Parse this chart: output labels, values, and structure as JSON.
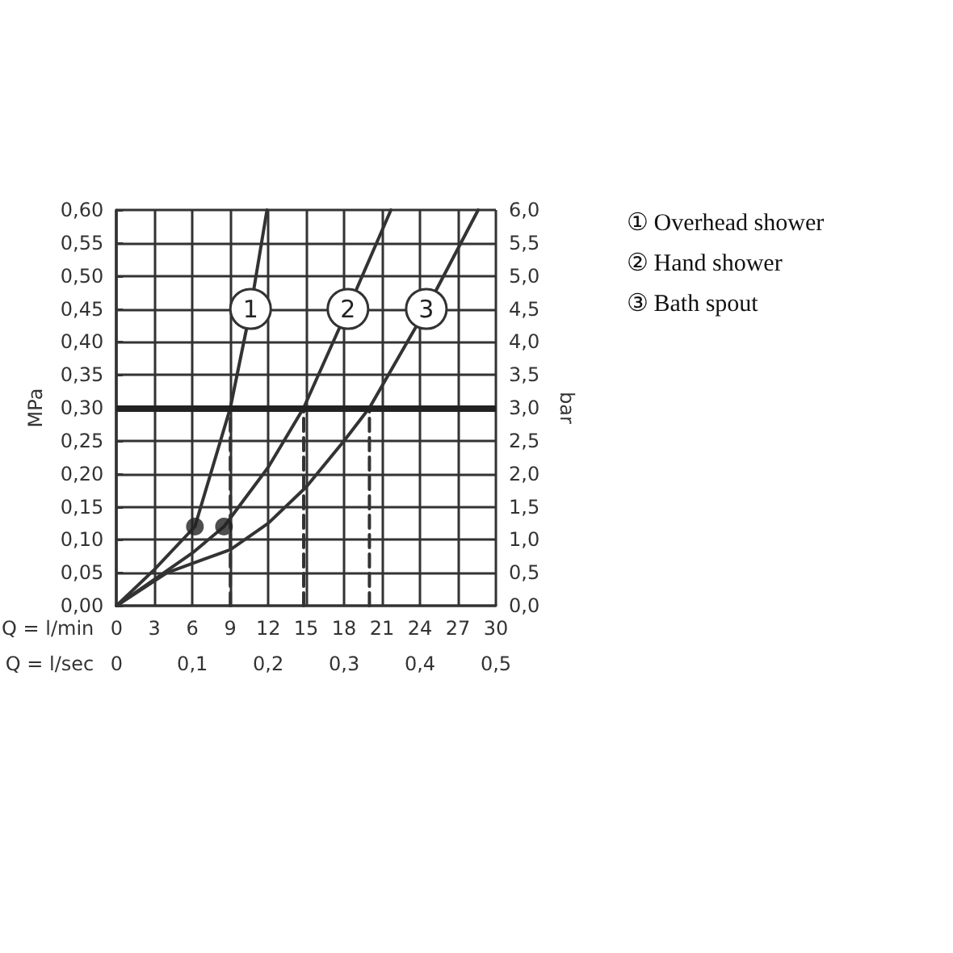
{
  "chart_data": {
    "type": "line",
    "xlabel": "Q = l/min",
    "x2label": "Q = l/sec",
    "ylabel": "MPa",
    "y2label": "bar",
    "xlim": [
      0,
      30
    ],
    "xticks": [
      0,
      3,
      6,
      9,
      12,
      15,
      18,
      21,
      24,
      27,
      30
    ],
    "x2lim": [
      0,
      0.5
    ],
    "x2ticks": [
      {
        "value": 0,
        "label": "0"
      },
      {
        "value": 0.1,
        "label": "0,1"
      },
      {
        "value": 0.2,
        "label": "0,2"
      },
      {
        "value": 0.3,
        "label": "0,3"
      },
      {
        "value": 0.4,
        "label": "0,4"
      },
      {
        "value": 0.5,
        "label": "0,5"
      }
    ],
    "ylim": [
      0,
      0.6
    ],
    "yticks": [
      {
        "value": 0,
        "label": "0,00"
      },
      {
        "value": 0.05,
        "label": "0,05"
      },
      {
        "value": 0.1,
        "label": "0,10"
      },
      {
        "value": 0.15,
        "label": "0,15"
      },
      {
        "value": 0.2,
        "label": "0,20"
      },
      {
        "value": 0.25,
        "label": "0,25"
      },
      {
        "value": 0.3,
        "label": "0,30"
      },
      {
        "value": 0.35,
        "label": "0,35"
      },
      {
        "value": 0.4,
        "label": "0,40"
      },
      {
        "value": 0.45,
        "label": "0,45"
      },
      {
        "value": 0.5,
        "label": "0,50"
      },
      {
        "value": 0.55,
        "label": "0,55"
      },
      {
        "value": 0.6,
        "label": "0,60"
      }
    ],
    "y2lim": [
      0,
      6
    ],
    "y2ticks": [
      {
        "value": 0,
        "label": "0,0"
      },
      {
        "value": 0.5,
        "label": "0,5"
      },
      {
        "value": 1,
        "label": "1,0"
      },
      {
        "value": 1.5,
        "label": "1,5"
      },
      {
        "value": 2,
        "label": "2,0"
      },
      {
        "value": 2.5,
        "label": "2,5"
      },
      {
        "value": 3,
        "label": "3,0"
      },
      {
        "value": 3.5,
        "label": "3,5"
      },
      {
        "value": 4,
        "label": "4,0"
      },
      {
        "value": 4.5,
        "label": "4,5"
      },
      {
        "value": 5,
        "label": "5,0"
      },
      {
        "value": 5.5,
        "label": "5,5"
      },
      {
        "value": 6,
        "label": "6,0"
      }
    ],
    "grid": true,
    "legend": "right",
    "marker": "none",
    "line_style": "solid",
    "series": [
      {
        "name": "① Overhead shower",
        "color": "#333333",
        "x": [
          0,
          3,
          6.2,
          9,
          10.6,
          11.9
        ],
        "values": [
          0,
          0.055,
          0.12,
          0.3,
          0.45,
          0.6
        ]
      },
      {
        "name": "② Hand shower",
        "color": "#333333",
        "x": [
          0,
          3,
          6,
          8.5,
          12,
          14.8,
          18.3,
          21.7
        ],
        "values": [
          0,
          0.04,
          0.08,
          0.12,
          0.21,
          0.3,
          0.45,
          0.6
        ]
      },
      {
        "name": "③ Bath spout",
        "color": "#333333",
        "x": [
          0,
          4,
          9,
          12,
          15,
          18,
          20,
          24.5,
          28.6
        ],
        "values": [
          0,
          0.05,
          0.085,
          0.125,
          0.18,
          0.25,
          0.3,
          0.45,
          0.6
        ]
      },
      {
        "type": "scatter",
        "color": "#222222",
        "marker": "circle",
        "x": [
          6.2,
          8.5
        ],
        "values": [
          0.12,
          0.12
        ]
      },
      {
        "color": "#333333",
        "line_style": "dashed",
        "x": [
          9,
          9
        ],
        "values": [
          0,
          0.3
        ]
      },
      {
        "color": "#333333",
        "line_style": "dashed",
        "x": [
          14.8,
          14.8
        ],
        "values": [
          0,
          0.3
        ]
      },
      {
        "color": "#333333",
        "line_style": "dashed",
        "x": [
          20,
          20
        ],
        "values": [
          0,
          0.3
        ]
      }
    ],
    "ref_lines": [
      {
        "axis": "y",
        "value": 0.3,
        "color": "#222222",
        "line_style": "solid"
      }
    ],
    "annotations": [
      {
        "text": "1",
        "x": 10.6,
        "y": 0.45
      },
      {
        "text": "2",
        "x": 18.3,
        "y": 0.45
      },
      {
        "text": "3",
        "x": 24.5,
        "y": 0.45
      }
    ]
  }
}
